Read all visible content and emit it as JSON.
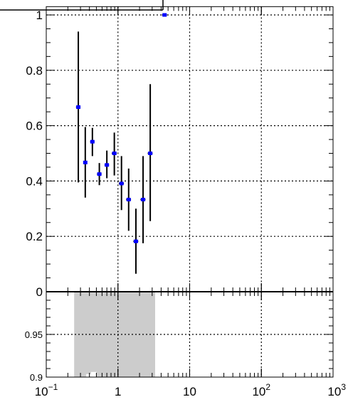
{
  "chart_data": [
    {
      "type": "scatter",
      "panel": "top",
      "x_scale": "log",
      "xlim": [
        0.1,
        1000
      ],
      "ylim": [
        0,
        1.03
      ],
      "grid": true,
      "y_ticks": [
        {
          "value": 0,
          "label": "0"
        },
        {
          "value": 0.2,
          "label": "0.2"
        },
        {
          "value": 0.4,
          "label": "0.4"
        },
        {
          "value": 0.6,
          "label": "0.6"
        },
        {
          "value": 0.8,
          "label": "0.8"
        },
        {
          "value": 1.0,
          "label": "1"
        }
      ],
      "marker_color": "#0000ff",
      "errorbar_color": "#000000",
      "points": [
        {
          "x": 0.28,
          "xlo": 0.26,
          "xhi": 0.3,
          "y": 0.667,
          "ylo": 0.395,
          "yhi": 0.94
        },
        {
          "x": 0.35,
          "xlo": 0.33,
          "xhi": 0.37,
          "y": 0.467,
          "ylo": 0.34,
          "yhi": 0.595
        },
        {
          "x": 0.44,
          "xlo": 0.41,
          "xhi": 0.47,
          "y": 0.542,
          "ylo": 0.49,
          "yhi": 0.592
        },
        {
          "x": 0.55,
          "xlo": 0.51,
          "xhi": 0.59,
          "y": 0.425,
          "ylo": 0.385,
          "yhi": 0.465
        },
        {
          "x": 0.7,
          "xlo": 0.65,
          "xhi": 0.75,
          "y": 0.458,
          "ylo": 0.41,
          "yhi": 0.51
        },
        {
          "x": 0.89,
          "xlo": 0.82,
          "xhi": 0.96,
          "y": 0.5,
          "ylo": 0.42,
          "yhi": 0.575
        },
        {
          "x": 1.12,
          "xlo": 1.03,
          "xhi": 1.21,
          "y": 0.391,
          "ylo": 0.295,
          "yhi": 0.49
        },
        {
          "x": 1.41,
          "xlo": 1.3,
          "xhi": 1.52,
          "y": 0.333,
          "ylo": 0.22,
          "yhi": 0.445
        },
        {
          "x": 1.78,
          "xlo": 1.64,
          "xhi": 1.92,
          "y": 0.182,
          "ylo": 0.065,
          "yhi": 0.3
        },
        {
          "x": 2.24,
          "xlo": 2.06,
          "xhi": 2.42,
          "y": 0.333,
          "ylo": 0.175,
          "yhi": 0.49
        },
        {
          "x": 2.82,
          "xlo": 2.6,
          "xhi": 3.04,
          "y": 0.5,
          "ylo": 0.255,
          "yhi": 0.75
        },
        {
          "x": 4.47,
          "xlo": 4.12,
          "xhi": 4.82,
          "y": 1.0,
          "ylo": 1.0,
          "yhi": 1.0
        }
      ]
    },
    {
      "type": "area",
      "panel": "bottom",
      "x_scale": "log",
      "xlim": [
        0.1,
        1000
      ],
      "ylim": [
        0.9,
        1.0
      ],
      "grid": true,
      "y_ticks": [
        {
          "value": 0.9,
          "label": "0.9"
        },
        {
          "value": 0.95,
          "label": "0.95"
        }
      ],
      "x_ticks": [
        {
          "value": 0.1,
          "base": "10",
          "exp": "−1"
        },
        {
          "value": 1,
          "base": "1",
          "exp": ""
        },
        {
          "value": 10,
          "base": "10",
          "exp": ""
        },
        {
          "value": 100,
          "base": "10",
          "exp": "2"
        },
        {
          "value": 1000,
          "base": "10",
          "exp": "3"
        }
      ],
      "band_color": "#cccccc",
      "band": {
        "x_from": 0.245,
        "x_to": 3.3,
        "y_from": 0.9,
        "y_to": 1.0
      },
      "white_steps": [
        {
          "x_from": 0.36,
          "x_to": 0.42,
          "y_top": 0.9035
        },
        {
          "x_from": 0.42,
          "x_to": 0.5,
          "y_top": 0.906
        }
      ]
    }
  ]
}
